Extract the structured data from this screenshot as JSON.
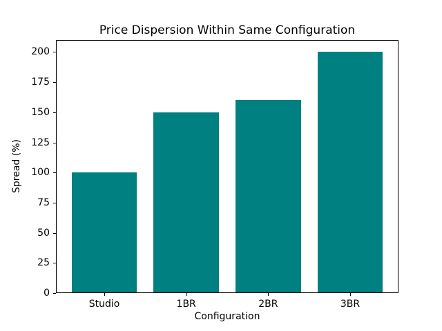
{
  "chart_data": {
    "type": "bar",
    "title": "Price Dispersion Within Same Configuration",
    "xlabel": "Configuration",
    "ylabel": "Spread (%)",
    "categories": [
      "Studio",
      "1BR",
      "2BR",
      "3BR"
    ],
    "values": [
      100,
      150,
      160,
      200
    ],
    "yticks": [
      0,
      25,
      50,
      75,
      100,
      125,
      150,
      175,
      200
    ],
    "ylim": [
      0,
      210
    ],
    "bar_color": "#008080",
    "background_color": "#ffffff",
    "grid": "off",
    "legend": "none",
    "bar_width_fraction": 0.8
  }
}
